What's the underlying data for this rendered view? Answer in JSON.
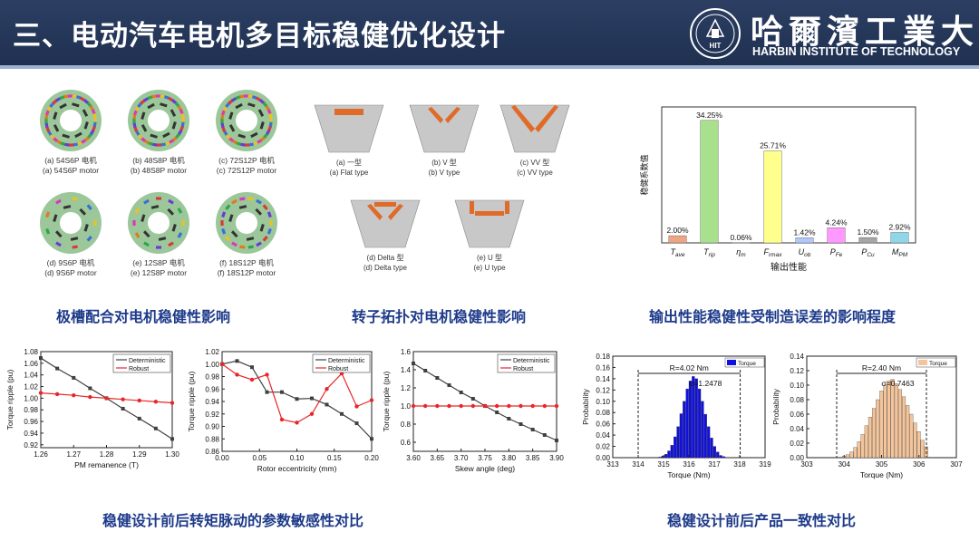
{
  "header": {
    "title": "三、电动汽车电机多目标稳健优化设计",
    "university_cn": "哈爾濱工業大學",
    "university_en": "HARBIN INSTITUTE OF TECHNOLOGY",
    "seal_text": "HIT"
  },
  "motors": {
    "items": [
      {
        "cn": "(a) 54S6P 电机",
        "en": "(a) 54S6P motor"
      },
      {
        "cn": "(b) 48S8P 电机",
        "en": "(b) 48S8P motor"
      },
      {
        "cn": "(c) 72S12P 电机",
        "en": "(c) 72S12P motor"
      },
      {
        "cn": "(d) 9S6P 电机",
        "en": "(d) 9S6P motor"
      },
      {
        "cn": "(e) 12S8P 电机",
        "en": "(e) 12S8P motor"
      },
      {
        "cn": "(f) 18S12P 电机",
        "en": "(f) 18S12P motor"
      }
    ]
  },
  "rotors": {
    "items": [
      {
        "cn": "(a) 一型",
        "en": "(a) Flat type"
      },
      {
        "cn": "(b) V 型",
        "en": "(b) V type"
      },
      {
        "cn": "(c) VV 型",
        "en": "(c) VV type"
      },
      {
        "cn": "(d) Delta 型",
        "en": "(d) Delta type"
      },
      {
        "cn": "(e) U 型",
        "en": "(e) U type"
      }
    ]
  },
  "captions": {
    "slot_pole": "极槽配合对电机稳健性影响",
    "rotor_topology": "转子拓扑对电机稳健性影响",
    "output_sensitivity": "输出性能稳健性受制造误差的影响程度",
    "ripple_sensitivity": "稳健设计前后转矩脉动的参数敏感性对比",
    "consistency": "稳健设计前后产品一致性对比"
  },
  "chart_data": [
    {
      "type": "bar",
      "ylabel": "稳健系数值",
      "xlabel": "输出性能",
      "categories": [
        "T_ave",
        "T_rip",
        "η_m",
        "F_rmax",
        "U_ob",
        "P_Fe",
        "P_Cu",
        "M_PM"
      ],
      "values": [
        2.0,
        34.25,
        0.06,
        25.71,
        1.42,
        4.24,
        1.5,
        2.92
      ],
      "labels": [
        "2.00%",
        "34.25%",
        "0.06%",
        "25.71%",
        "1.42%",
        "4.24%",
        "1.50%",
        "2.92%"
      ],
      "colors": [
        "#f0a582",
        "#a8e08e",
        "#d9d9d9",
        "#ffff8c",
        "#b3c7ff",
        "#ff99ff",
        "#a6a6a6",
        "#8fd6e8"
      ],
      "ylim": [
        0,
        38
      ]
    },
    {
      "type": "line",
      "xlabel": "PM remanence (T)",
      "ylabel": "Torque ripple (pu)",
      "x": [
        1.26,
        1.27,
        1.28,
        1.29,
        1.3
      ],
      "xticks": [
        "1.26",
        "1.27",
        "1.28",
        "1.29",
        "1.30"
      ],
      "yticks": [
        "0.92",
        "0.94",
        "0.96",
        "0.98",
        "1.00",
        "1.02",
        "1.04",
        "1.06",
        "1.08"
      ],
      "ylim": [
        0.915,
        1.08
      ],
      "series": [
        {
          "name": "Deterministic",
          "color": "#404040",
          "marker": "square",
          "x": [
            1.26,
            1.265,
            1.27,
            1.275,
            1.28,
            1.285,
            1.29,
            1.295,
            1.3
          ],
          "values": [
            1.069,
            1.051,
            1.035,
            1.017,
            1.0,
            0.982,
            0.965,
            0.948,
            0.93
          ]
        },
        {
          "name": "Robust",
          "color": "#e8262a",
          "marker": "circle",
          "x": [
            1.26,
            1.265,
            1.27,
            1.275,
            1.28,
            1.285,
            1.29,
            1.295,
            1.3
          ],
          "values": [
            1.009,
            1.007,
            1.005,
            1.002,
            1.0,
            0.998,
            0.996,
            0.994,
            0.992
          ]
        }
      ]
    },
    {
      "type": "line",
      "xlabel": "Rotor eccentricity (mm)",
      "ylabel": "Torque ripple (pu)",
      "x": [
        0.0,
        0.05,
        0.1,
        0.15,
        0.2
      ],
      "xticks": [
        "0.00",
        "0.05",
        "0.10",
        "0.15",
        "0.20"
      ],
      "yticks": [
        "0.86",
        "0.88",
        "0.90",
        "0.92",
        "0.94",
        "0.96",
        "0.98",
        "1.00",
        "1.02"
      ],
      "ylim": [
        0.86,
        1.02
      ],
      "series": [
        {
          "name": "Deterministic",
          "color": "#404040",
          "marker": "square",
          "x": [
            0.0,
            0.02,
            0.04,
            0.06,
            0.08,
            0.1,
            0.12,
            0.14,
            0.16,
            0.18,
            0.2
          ],
          "values": [
            1.0,
            1.005,
            0.995,
            0.955,
            0.955,
            0.944,
            0.945,
            0.935,
            0.92,
            0.905,
            0.88
          ]
        },
        {
          "name": "Robust",
          "color": "#e8262a",
          "marker": "circle",
          "x": [
            0.0,
            0.02,
            0.04,
            0.06,
            0.08,
            0.1,
            0.12,
            0.14,
            0.16,
            0.18,
            0.2
          ],
          "values": [
            1.0,
            0.983,
            0.975,
            0.983,
            0.911,
            0.906,
            0.92,
            0.96,
            0.985,
            0.932,
            0.942
          ]
        }
      ]
    },
    {
      "type": "line",
      "xlabel": "Skew angle (deg)",
      "ylabel": "Torque ripple (pu)",
      "x": [
        3.6,
        3.65,
        3.7,
        3.75,
        3.8,
        3.85,
        3.9
      ],
      "xticks": [
        "3.60",
        "3.65",
        "3.70",
        "3.75",
        "3.80",
        "3.85",
        "3.90"
      ],
      "yticks": [
        "0.6",
        "0.8",
        "1.0",
        "1.2",
        "1.4",
        "1.6"
      ],
      "ylim": [
        0.5,
        1.6
      ],
      "series": [
        {
          "name": "Deterministic",
          "color": "#404040",
          "marker": "square",
          "x": [
            3.6,
            3.625,
            3.65,
            3.675,
            3.7,
            3.725,
            3.75,
            3.775,
            3.8,
            3.825,
            3.85,
            3.875,
            3.9
          ],
          "values": [
            1.47,
            1.39,
            1.31,
            1.23,
            1.15,
            1.08,
            1.0,
            0.93,
            0.86,
            0.8,
            0.74,
            0.68,
            0.62
          ]
        },
        {
          "name": "Robust",
          "color": "#e8262a",
          "marker": "circle",
          "x": [
            3.6,
            3.625,
            3.65,
            3.675,
            3.7,
            3.725,
            3.75,
            3.775,
            3.8,
            3.825,
            3.85,
            3.875,
            3.9
          ],
          "values": [
            1.0,
            1.0,
            1.0,
            1.0,
            1.0,
            1.0,
            1.0,
            1.0,
            1.0,
            1.0,
            1.0,
            1.0,
            1.0
          ]
        }
      ]
    },
    {
      "type": "bar",
      "subtype": "histogram",
      "xlabel": "Torque (Nm)",
      "ylabel": "Probability",
      "legend": "Torque",
      "range_label": "R=4.02 Nm",
      "sigma_label": "σ=1.2478",
      "color": "#1010e0",
      "xticks": [
        "313",
        "314",
        "315",
        "316",
        "317",
        "318",
        "319"
      ],
      "xlim": [
        313,
        319
      ],
      "range": [
        314.0,
        318.02
      ],
      "yticks": [
        "0.00",
        "0.02",
        "0.04",
        "0.06",
        "0.08",
        "0.10",
        "0.12",
        "0.14",
        "0.16",
        "0.18"
      ],
      "ylim": [
        0,
        0.18
      ],
      "bin_start": 314.8,
      "bin_width": 0.12,
      "values": [
        0.001,
        0.003,
        0.006,
        0.012,
        0.022,
        0.037,
        0.055,
        0.078,
        0.1,
        0.122,
        0.136,
        0.144,
        0.14,
        0.122,
        0.1,
        0.077,
        0.055,
        0.035,
        0.02,
        0.01,
        0.004,
        0.002
      ]
    },
    {
      "type": "bar",
      "subtype": "histogram",
      "xlabel": "Torque (Nm)",
      "ylabel": "Probability",
      "legend": "Torque",
      "range_label": "R=2.40 Nm",
      "sigma_label": "σ=0.7463",
      "color": "#f4c49a",
      "xticks": [
        "303",
        "304",
        "305",
        "306",
        "307"
      ],
      "xlim": [
        303,
        307
      ],
      "range": [
        303.8,
        306.2
      ],
      "yticks": [
        "0.00",
        "0.02",
        "0.04",
        "0.06",
        "0.08",
        "0.10",
        "0.12",
        "0.14"
      ],
      "ylim": [
        0,
        0.14
      ],
      "bin_start": 303.95,
      "bin_width": 0.1,
      "values": [
        0.002,
        0.004,
        0.008,
        0.014,
        0.022,
        0.032,
        0.044,
        0.056,
        0.068,
        0.08,
        0.092,
        0.1,
        0.106,
        0.108,
        0.102,
        0.094,
        0.084,
        0.072,
        0.06,
        0.048,
        0.036,
        0.024,
        0.015
      ]
    }
  ]
}
